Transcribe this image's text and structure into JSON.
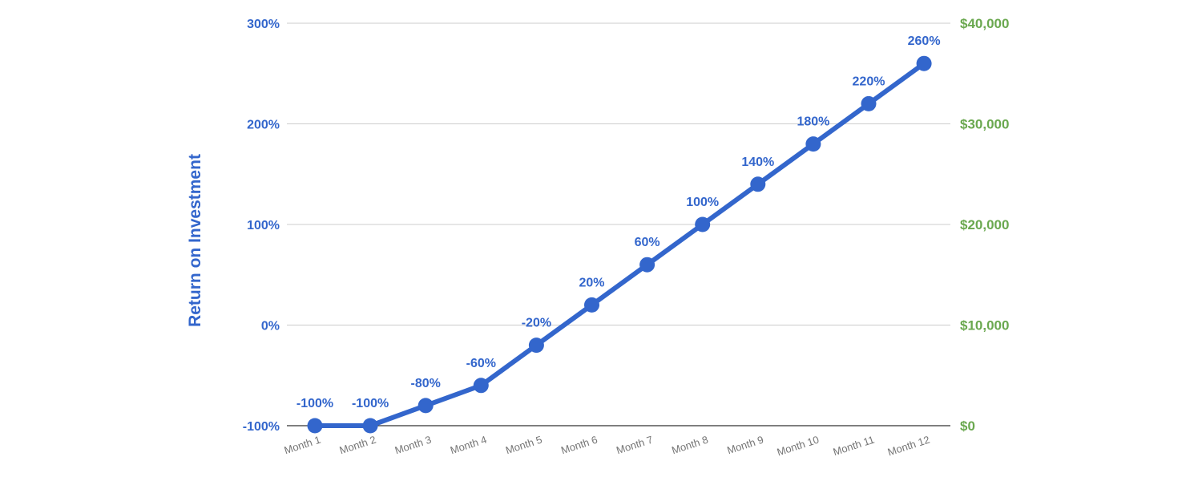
{
  "chart_data": {
    "type": "line",
    "title": "",
    "xlabel": "",
    "ylabel": "Return on Investment",
    "categories": [
      "Month 1",
      "Month 2",
      "Month 3",
      "Month 4",
      "Month 5",
      "Month 6",
      "Month 7",
      "Month 8",
      "Month 9",
      "Month 10",
      "Month 11",
      "Month 12"
    ],
    "series": [
      {
        "values": [
          -100,
          -100,
          -80,
          -60,
          -20,
          20,
          60,
          100,
          140,
          180,
          220,
          260
        ]
      }
    ],
    "data_labels": [
      "-100%",
      "-100%",
      "-80%",
      "-60%",
      "-20%",
      "20%",
      "60%",
      "100%",
      "140%",
      "180%",
      "220%",
      "260%"
    ],
    "ylim": [
      -100,
      300
    ],
    "yticks": [
      300,
      200,
      100,
      0,
      -100
    ],
    "ytick_labels": [
      "300%",
      "200%",
      "100%",
      "0%",
      "-100%"
    ],
    "y2lim": [
      0,
      40000
    ],
    "y2ticks": [
      40000,
      30000,
      20000,
      10000,
      0
    ],
    "y2tick_labels": [
      "$40,000",
      "$30,000",
      "$20,000",
      "$10,000",
      "$0"
    ],
    "grid": true,
    "legend": "none",
    "colors": {
      "series": "#3366CC",
      "left_axis_text": "#3366CC",
      "right_axis_text": "#6AA84F",
      "grid": "#CCCCCC",
      "baseline": "#333333",
      "category_text": "#757575"
    }
  }
}
